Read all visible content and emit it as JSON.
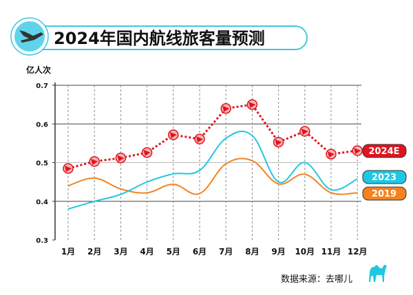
{
  "title": "2024年国内航线旅客量预测",
  "source": "数据来源：去哪儿",
  "icons": {
    "title": "airplane-icon",
    "source": "camel-icon",
    "marker": "airplane-icon"
  },
  "chart_data": {
    "type": "line",
    "title": "2024年国内航线旅客量预测",
    "ylabel": "亿人次",
    "ylim": [
      0.3,
      0.7
    ],
    "yticks": [
      "0.3",
      "0.4",
      "0.5",
      "0.6",
      "0.7"
    ],
    "categories": [
      "1月",
      "2月",
      "3月",
      "4月",
      "5月",
      "6月",
      "7月",
      "8月",
      "9月",
      "10月",
      "11月",
      "12月"
    ],
    "grid": true,
    "legend": "right end labels",
    "series": [
      {
        "name": "2024E",
        "color": "#e0141e",
        "style": "dotted-markers",
        "values": [
          0.485,
          0.503,
          0.512,
          0.526,
          0.572,
          0.561,
          0.64,
          0.65,
          0.553,
          0.581,
          0.522,
          0.531
        ]
      },
      {
        "name": "2023",
        "color": "#1ec8e2",
        "style": "smooth",
        "values": [
          0.38,
          0.4,
          0.418,
          0.45,
          0.471,
          0.48,
          0.563,
          0.57,
          0.45,
          0.5,
          0.43,
          0.458
        ]
      },
      {
        "name": "2019",
        "color": "#f5821f",
        "style": "smooth",
        "values": [
          0.44,
          0.46,
          0.432,
          0.422,
          0.444,
          0.42,
          0.497,
          0.505,
          0.445,
          0.47,
          0.422,
          0.422
        ]
      }
    ]
  }
}
